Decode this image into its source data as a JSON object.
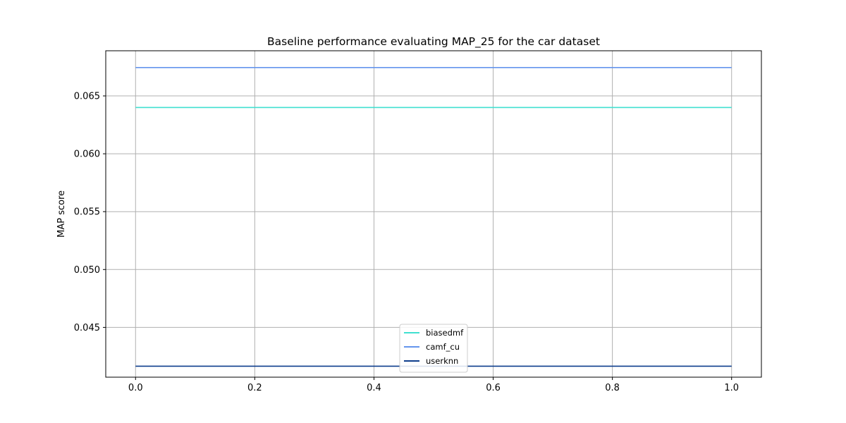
{
  "chart_data": {
    "type": "line",
    "title": "Baseline performance evaluating MAP_25 for the car dataset",
    "xlabel": "",
    "ylabel": "MAP score",
    "xlim": [
      -0.05,
      1.05
    ],
    "ylim": [
      0.0407,
      0.0689
    ],
    "xticks": [
      0.0,
      0.2,
      0.4,
      0.6,
      0.8,
      1.0
    ],
    "xtick_labels": [
      "0.0",
      "0.2",
      "0.4",
      "0.6",
      "0.8",
      "1.0"
    ],
    "yticks": [
      0.045,
      0.05,
      0.055,
      0.06,
      0.065
    ],
    "ytick_labels": [
      "0.045",
      "0.050",
      "0.055",
      "0.060",
      "0.065"
    ],
    "grid": true,
    "legend_position": "lower-center",
    "series": [
      {
        "name": "biasedmf",
        "color": "#40e0d0",
        "x": [
          0.0,
          1.0
        ],
        "y": [
          0.064,
          0.064
        ]
      },
      {
        "name": "camf_cu",
        "color": "#6495ed",
        "x": [
          0.0,
          1.0
        ],
        "y": [
          0.06745,
          0.06745
        ]
      },
      {
        "name": "userknn",
        "color": "#0d3d8c",
        "x": [
          0.0,
          1.0
        ],
        "y": [
          0.04165,
          0.04165
        ]
      }
    ]
  }
}
